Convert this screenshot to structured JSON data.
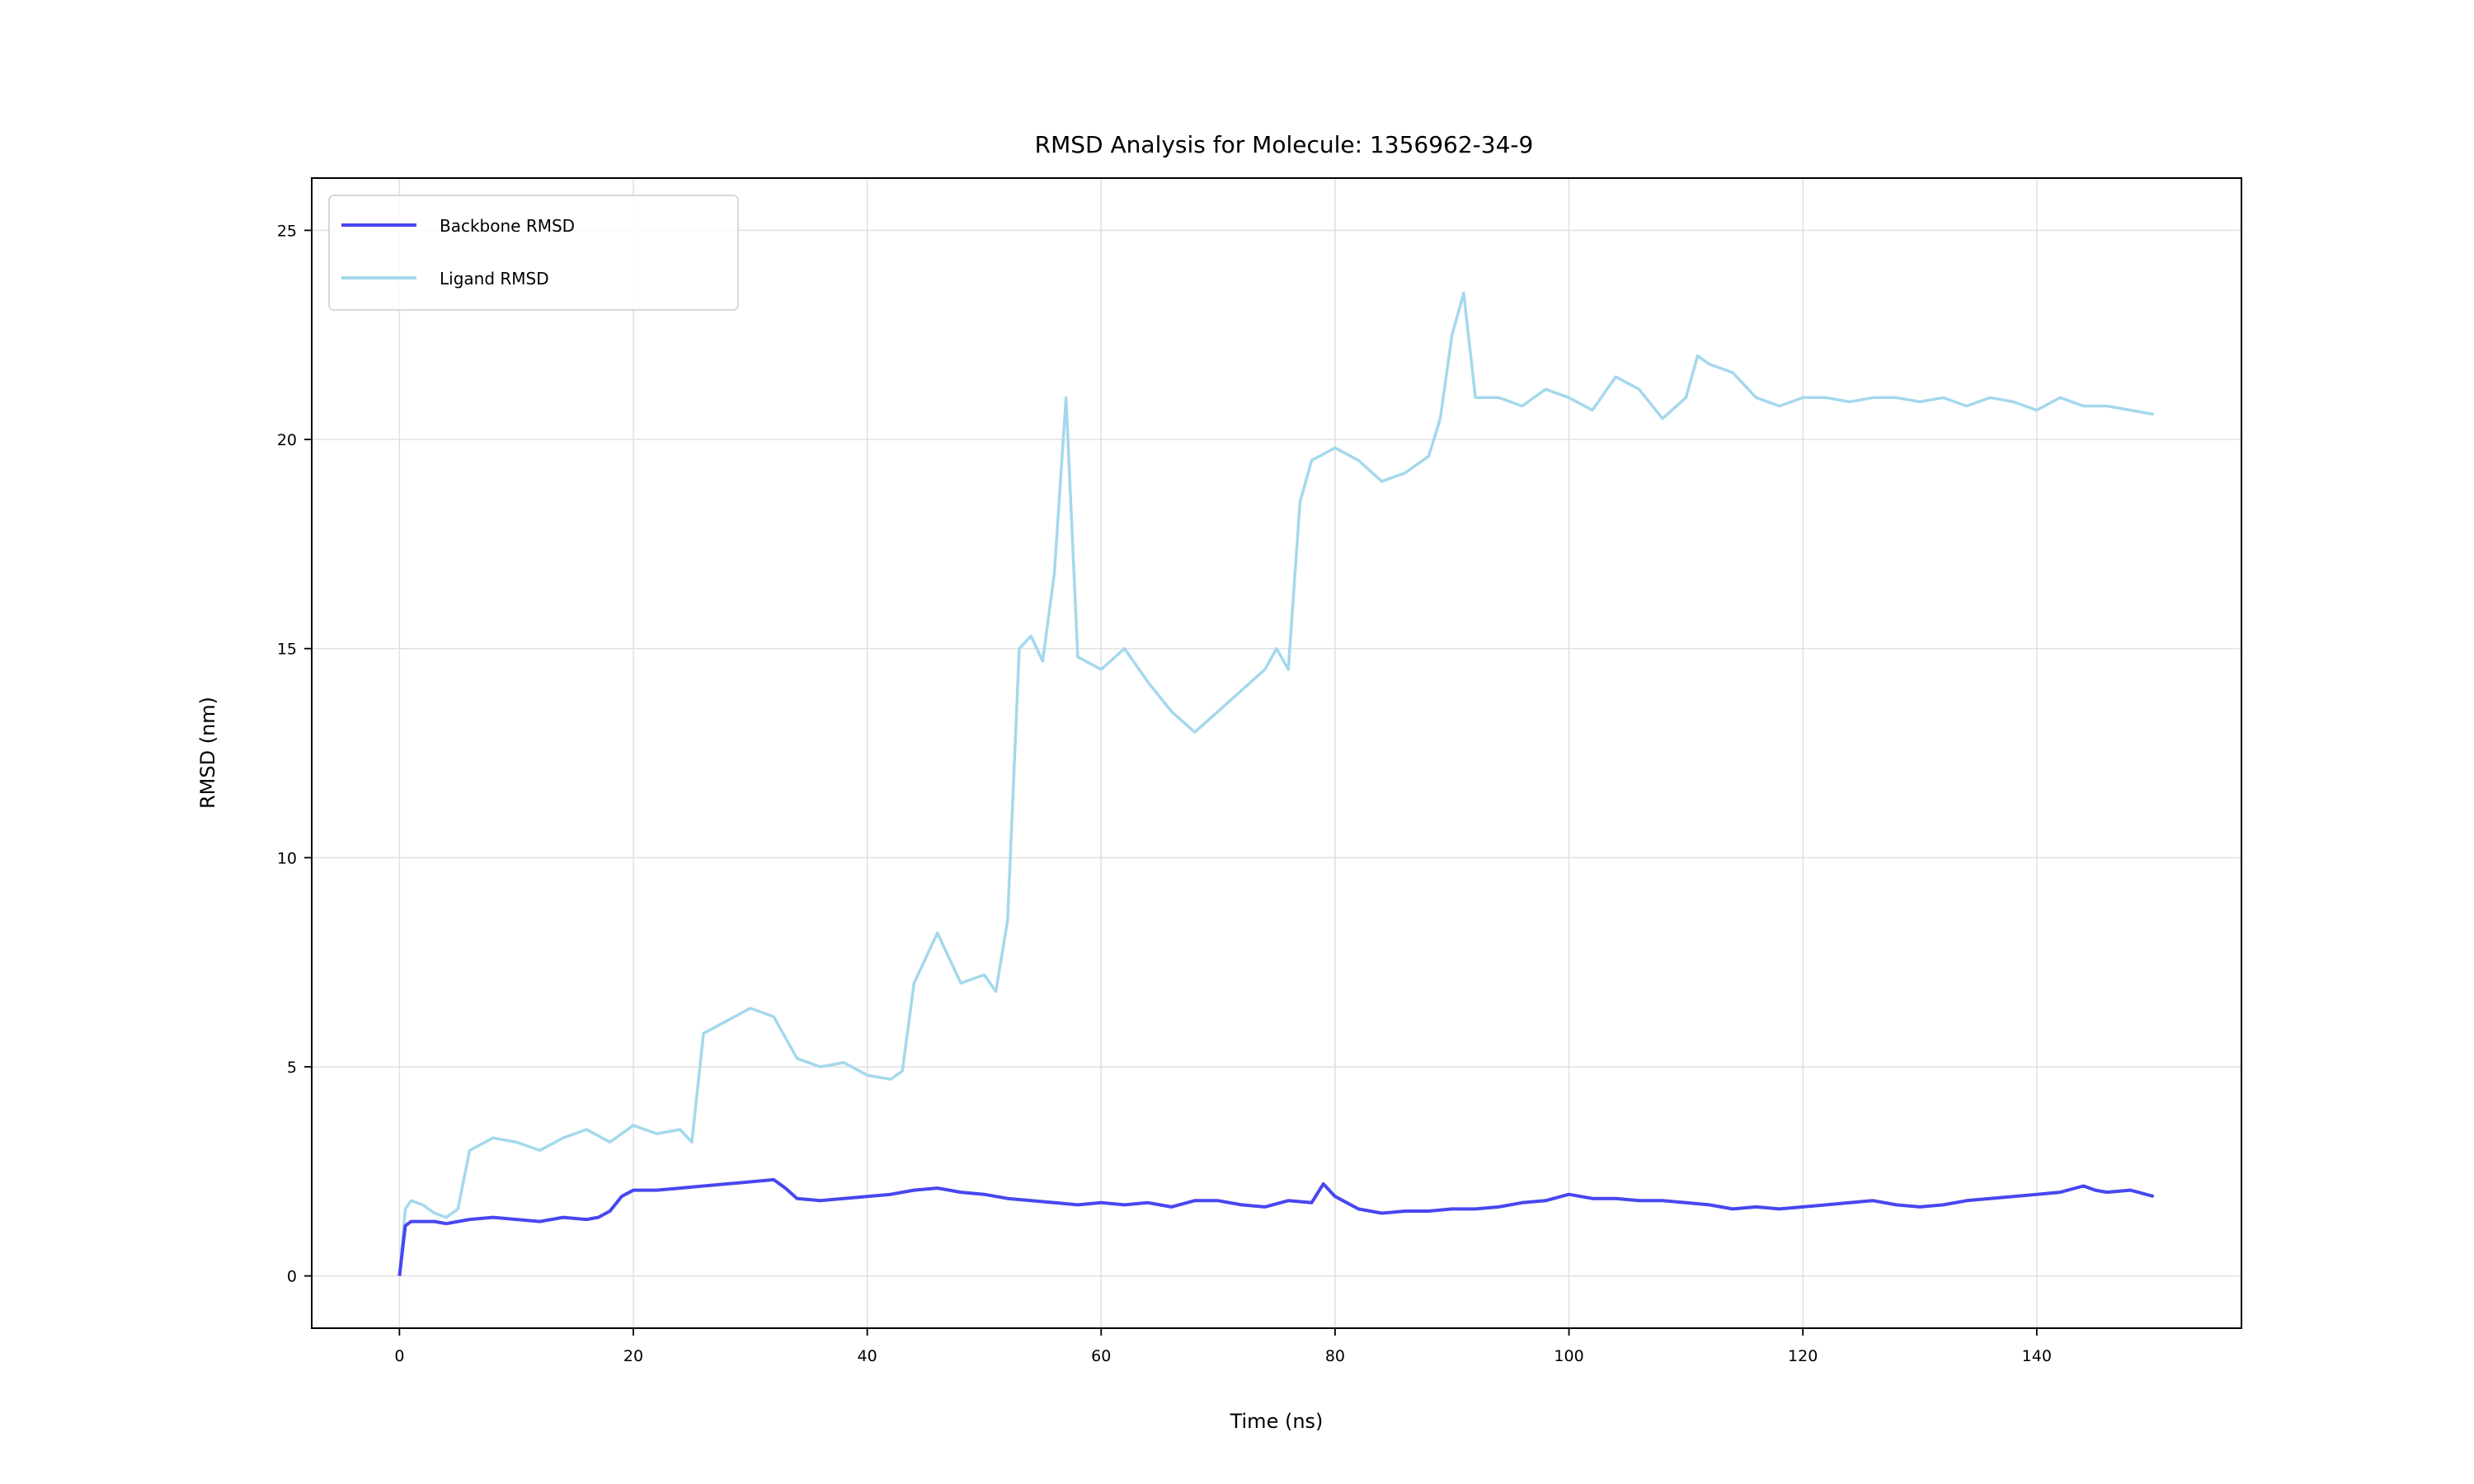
{
  "chart_data": {
    "type": "line",
    "title": "RMSD Analysis for Molecule: 1356962-34-9",
    "xlabel": "Time (ns)",
    "ylabel": "RMSD (nm)",
    "xlim": [
      -7.5,
      157.5
    ],
    "ylim": [
      -1.25,
      26.25
    ],
    "xticks": [
      0,
      20,
      40,
      60,
      80,
      100,
      120,
      140
    ],
    "yticks": [
      0,
      5,
      10,
      15,
      20,
      25
    ],
    "grid": true,
    "legend_position": "upper-left",
    "series": [
      {
        "name": "Backbone RMSD",
        "color": "#4747f0",
        "x": [
          0,
          0.5,
          1,
          2,
          3,
          4,
          5,
          6,
          8,
          10,
          12,
          14,
          16,
          17,
          18,
          19,
          20,
          22,
          24,
          26,
          28,
          30,
          32,
          33,
          34,
          36,
          38,
          40,
          42,
          44,
          46,
          48,
          50,
          52,
          54,
          56,
          58,
          60,
          62,
          64,
          66,
          68,
          70,
          72,
          74,
          76,
          78,
          79,
          80,
          82,
          84,
          86,
          88,
          90,
          92,
          94,
          96,
          98,
          100,
          102,
          104,
          106,
          108,
          110,
          112,
          114,
          116,
          118,
          120,
          122,
          124,
          126,
          128,
          130,
          132,
          134,
          136,
          138,
          140,
          142,
          144,
          145,
          146,
          148,
          150
        ],
        "y": [
          0.0,
          1.2,
          1.3,
          1.3,
          1.3,
          1.25,
          1.3,
          1.35,
          1.4,
          1.35,
          1.3,
          1.4,
          1.35,
          1.4,
          1.55,
          1.9,
          2.05,
          2.05,
          2.1,
          2.15,
          2.2,
          2.25,
          2.3,
          2.1,
          1.85,
          1.8,
          1.85,
          1.9,
          1.95,
          2.05,
          2.1,
          2.0,
          1.95,
          1.85,
          1.8,
          1.75,
          1.7,
          1.75,
          1.7,
          1.75,
          1.65,
          1.8,
          1.8,
          1.7,
          1.65,
          1.8,
          1.75,
          2.2,
          1.9,
          1.6,
          1.5,
          1.55,
          1.55,
          1.6,
          1.6,
          1.65,
          1.75,
          1.8,
          1.95,
          1.85,
          1.85,
          1.8,
          1.8,
          1.75,
          1.7,
          1.6,
          1.65,
          1.6,
          1.65,
          1.7,
          1.75,
          1.8,
          1.7,
          1.65,
          1.7,
          1.8,
          1.85,
          1.9,
          1.95,
          2.0,
          2.15,
          2.05,
          2.0,
          2.05,
          1.9
        ]
      },
      {
        "name": "Ligand RMSD",
        "color": "#a4d8ec",
        "x": [
          0,
          0.5,
          1,
          2,
          3,
          4,
          5,
          6,
          8,
          10,
          12,
          14,
          16,
          18,
          20,
          22,
          24,
          25,
          26,
          28,
          30,
          32,
          34,
          36,
          38,
          40,
          42,
          43,
          44,
          46,
          48,
          50,
          51,
          52,
          53,
          54,
          55,
          56,
          57,
          58,
          60,
          62,
          64,
          66,
          68,
          70,
          72,
          74,
          75,
          76,
          77,
          78,
          80,
          82,
          84,
          86,
          88,
          89,
          90,
          91,
          92,
          94,
          96,
          98,
          100,
          102,
          104,
          106,
          108,
          110,
          111,
          112,
          114,
          116,
          118,
          120,
          122,
          124,
          126,
          128,
          130,
          132,
          134,
          136,
          138,
          140,
          142,
          144,
          146,
          148,
          150
        ],
        "y": [
          0.0,
          1.6,
          1.8,
          1.7,
          1.5,
          1.4,
          1.6,
          3.0,
          3.3,
          3.2,
          3.0,
          3.3,
          3.5,
          3.2,
          3.6,
          3.4,
          3.5,
          3.2,
          5.8,
          6.1,
          6.4,
          6.2,
          5.2,
          5.0,
          5.1,
          4.8,
          4.7,
          4.9,
          7.0,
          8.2,
          7.0,
          7.2,
          6.8,
          8.5,
          15.0,
          15.3,
          14.7,
          16.8,
          21.0,
          14.8,
          14.5,
          15.0,
          14.2,
          13.5,
          13.0,
          13.5,
          14.0,
          14.5,
          15.0,
          14.5,
          18.5,
          19.5,
          19.8,
          19.5,
          19.0,
          19.2,
          19.6,
          20.5,
          22.5,
          23.5,
          21.0,
          21.0,
          20.8,
          21.2,
          21.0,
          20.7,
          21.5,
          21.2,
          20.5,
          21.0,
          22.0,
          21.8,
          21.6,
          21.0,
          20.8,
          21.0,
          21.0,
          20.9,
          21.0,
          21.0,
          20.9,
          21.0,
          20.8,
          21.0,
          20.9,
          20.7,
          21.0,
          20.8,
          20.8,
          20.7,
          20.6
        ]
      }
    ]
  }
}
